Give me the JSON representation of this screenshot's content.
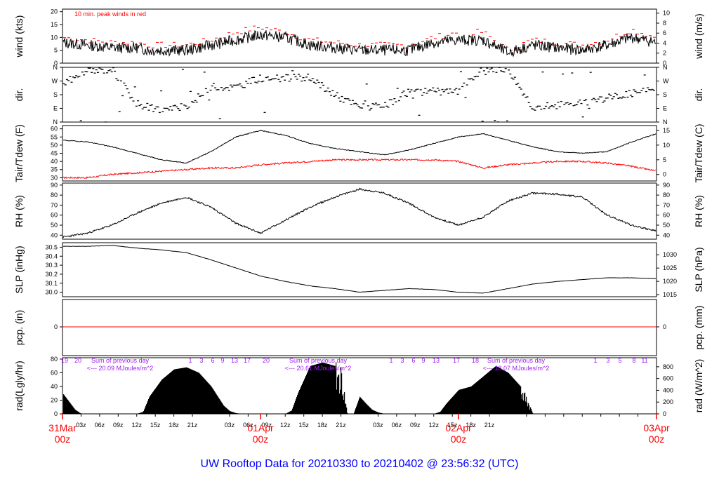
{
  "footer": "UW Rooftop Data for 20210330  to  20210402 @ 23:56:32  (UTC)",
  "colors": {
    "series": "#000000",
    "red": "#ff0000",
    "purple": "#a020f0",
    "footer": "#0000ff"
  },
  "chart_data": [
    {
      "type": "line",
      "ylabel_left": "wind (kts)",
      "ylabel_right": "wind (m/s)",
      "annotation": "10 min. peak winds in red",
      "ylim": [
        0,
        21
      ],
      "ticks_left": [
        0,
        5,
        10,
        15,
        20
      ],
      "ticks_right": [
        "0",
        "2",
        "4",
        "6",
        "8",
        "10"
      ],
      "x_hours": [
        0,
        4,
        8,
        12,
        14,
        16,
        18,
        20,
        24,
        28,
        32,
        36,
        40,
        44,
        48,
        52,
        56,
        60,
        64,
        68,
        72,
        76,
        80,
        84,
        88,
        92,
        96
      ],
      "series": [
        {
          "values": [
            8,
            7,
            6,
            6,
            5,
            5,
            5,
            5,
            7,
            9,
            11,
            10,
            7,
            6,
            5,
            5,
            5,
            8,
            9,
            9,
            4,
            7,
            6,
            5,
            7,
            10,
            8
          ]
        },
        {
          "values": [
            10,
            9,
            8,
            8,
            7,
            7,
            7,
            7,
            9,
            12,
            14,
            12,
            9,
            8,
            7,
            7,
            7,
            10,
            12,
            12,
            5,
            9,
            8,
            7,
            9,
            13,
            10
          ]
        }
      ]
    },
    {
      "type": "scatter",
      "ylabel": "dir.",
      "ticks": [
        "N",
        "W",
        "S",
        "E",
        "N"
      ],
      "x_hours": [
        0,
        4,
        8,
        12,
        16,
        20,
        24,
        28,
        32,
        36,
        40,
        44,
        48,
        52,
        56,
        60,
        64,
        68,
        72,
        76,
        80,
        84,
        88,
        92,
        96
      ],
      "values": [
        250,
        330,
        350,
        120,
        80,
        100,
        230,
        230,
        290,
        290,
        290,
        180,
        100,
        100,
        200,
        200,
        200,
        350,
        350,
        100,
        110,
        130,
        160,
        190,
        220
      ]
    },
    {
      "type": "line",
      "ylabel_left": "Tair/Tdew (F)",
      "ylabel_right": "Tair/Tdew (C)",
      "ylim": [
        28,
        62
      ],
      "ticks_left": [
        30,
        35,
        40,
        45,
        50,
        55,
        60
      ],
      "ticks_right": [
        "0",
        "5",
        "10",
        "15"
      ],
      "x_hours": [
        0,
        4,
        8,
        12,
        16,
        20,
        24,
        28,
        32,
        36,
        40,
        44,
        48,
        52,
        56,
        60,
        64,
        68,
        72,
        76,
        80,
        84,
        88,
        92,
        96
      ],
      "series": [
        {
          "name": "Tair",
          "values": [
            53,
            52,
            49,
            45,
            41,
            39,
            46,
            55,
            59,
            56,
            51,
            48,
            46,
            44,
            47,
            51,
            55,
            57,
            53,
            49,
            46,
            45,
            46,
            52,
            57
          ]
        },
        {
          "name": "Tdew",
          "values": [
            30,
            30,
            32,
            33,
            34,
            35,
            36,
            36,
            38,
            39,
            40,
            41,
            41,
            41,
            41,
            41,
            40,
            36,
            38,
            39,
            40,
            40,
            39,
            37,
            34
          ]
        }
      ]
    },
    {
      "type": "line",
      "ylabel_left": "RH (%)",
      "ylabel_right": "RH (%)",
      "ylim": [
        36,
        92
      ],
      "ticks_left": [
        40,
        50,
        60,
        70,
        80,
        90
      ],
      "ticks_right": [
        "40",
        "50",
        "60",
        "70",
        "80",
        "90"
      ],
      "x_hours": [
        0,
        4,
        8,
        12,
        16,
        20,
        24,
        28,
        32,
        36,
        40,
        44,
        48,
        52,
        56,
        60,
        64,
        68,
        72,
        76,
        80,
        84,
        88,
        92,
        96
      ],
      "values": [
        38,
        42,
        50,
        62,
        72,
        78,
        68,
        52,
        42,
        55,
        68,
        78,
        86,
        82,
        72,
        58,
        50,
        58,
        74,
        82,
        81,
        78,
        60,
        50,
        44
      ]
    },
    {
      "type": "line",
      "ylabel_left": "SLP (inHg)",
      "ylabel_right": "SLP (hPa)",
      "ylim": [
        29.95,
        30.55
      ],
      "ticks_left": [
        "30.0",
        "30.1",
        "30.2",
        "30.3",
        "30.4",
        "30.5"
      ],
      "ticks_right": [
        "1015",
        "1020",
        "1025",
        "1030"
      ],
      "x_hours": [
        0,
        4,
        8,
        12,
        16,
        20,
        24,
        28,
        32,
        36,
        40,
        44,
        48,
        52,
        56,
        60,
        64,
        68,
        72,
        76,
        80,
        84,
        88,
        92,
        96
      ],
      "values": [
        30.51,
        30.51,
        30.52,
        30.49,
        30.47,
        30.44,
        30.36,
        30.27,
        30.18,
        30.12,
        30.07,
        30.04,
        30.0,
        30.02,
        30.04,
        30.03,
        30.0,
        29.99,
        30.04,
        30.09,
        30.12,
        30.14,
        30.16,
        30.16,
        30.15
      ]
    },
    {
      "type": "line",
      "ylabel_left": "pcp. (in)",
      "ylabel_right": "pcp. (mm)",
      "ticks_left": [
        0
      ],
      "ticks_right": [
        "0"
      ],
      "values": [
        0
      ]
    },
    {
      "type": "area",
      "ylabel_left": "rad(Lgly/hr)",
      "ylabel_right": "rad (W/m^2)",
      "ylim": [
        0,
        82
      ],
      "ticks_left": [
        0,
        20,
        40,
        60,
        80
      ],
      "ticks_right": [
        "0",
        "200",
        "400",
        "600",
        "800"
      ],
      "sun_hours": [
        {
          "labels": [
            "19",
            "20"
          ]
        },
        {
          "labels": [
            "1",
            "3",
            "6",
            "9",
            "13",
            "17",
            "20"
          ]
        },
        {
          "labels": [
            "1",
            "3",
            "6",
            "9",
            "13",
            "17",
            "18"
          ]
        },
        {
          "labels": [
            "1",
            "3",
            "5",
            "8",
            "11"
          ]
        }
      ],
      "daily_sums": [
        {
          "label": "Sum of previous day",
          "value": "<--- 20.09 MJoules/m^2"
        },
        {
          "label": "Sum of previous day",
          "value": "<--- 20.61 MJoules/m^2"
        },
        {
          "label": "Sum of previous day",
          "value": "<--- 18.07 MJoules/m^2"
        }
      ],
      "x_hours": [
        0,
        1,
        2,
        3,
        12,
        13,
        14,
        16,
        18,
        20,
        22,
        24,
        26,
        27,
        28,
        29,
        36,
        37,
        38,
        40,
        42,
        44,
        45,
        46,
        47,
        48,
        49,
        50,
        51,
        52,
        53,
        60,
        61,
        62,
        64,
        66,
        68,
        70,
        72,
        74,
        75,
        76
      ],
      "values": [
        30,
        18,
        6,
        0,
        0,
        3,
        25,
        50,
        65,
        68,
        60,
        40,
        12,
        4,
        1,
        0,
        0,
        5,
        30,
        70,
        75,
        70,
        65,
        0,
        0,
        25,
        15,
        6,
        2,
        0,
        0,
        0,
        3,
        15,
        35,
        40,
        55,
        70,
        60,
        40,
        25,
        0
      ]
    }
  ],
  "x_axis": {
    "hour_labels": [
      "03z",
      "06z",
      "09z",
      "12z",
      "15z",
      "18z",
      "21z",
      "03z",
      "06z",
      "09z",
      "12z",
      "15z",
      "18z",
      "21z",
      "03z",
      "06z",
      "09z",
      "12z",
      "15z",
      "18z",
      "21z"
    ],
    "date_labels": [
      {
        "date": "31Mar",
        "time": "00z"
      },
      {
        "date": "01Apr",
        "time": "00z"
      },
      {
        "date": "02Apr",
        "time": "00z"
      },
      {
        "date": "03Apr",
        "time": "00z"
      }
    ]
  }
}
